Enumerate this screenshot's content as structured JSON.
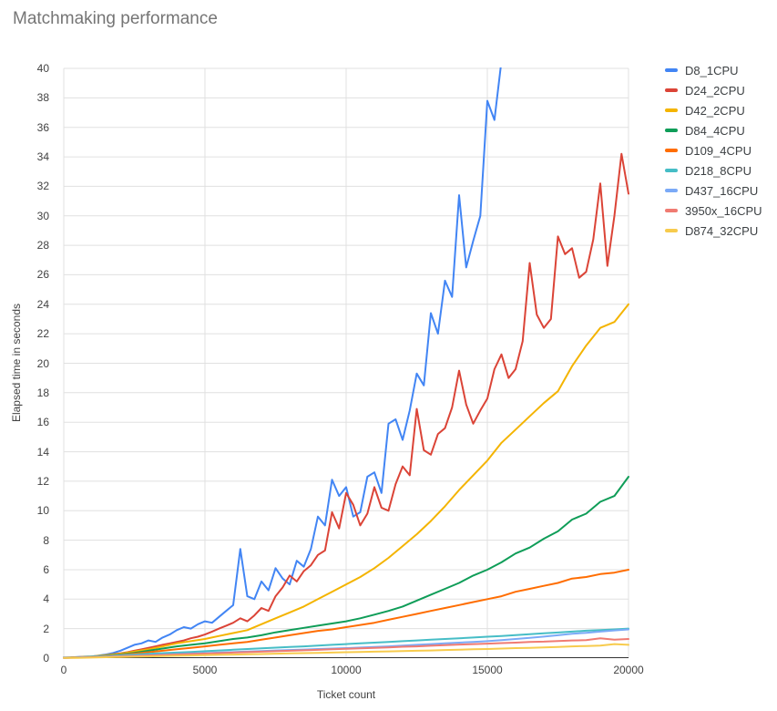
{
  "chart_data": {
    "type": "line",
    "title": "Matchmaking performance",
    "xlabel": "Ticket count",
    "ylabel": "Elapsed time in seconds",
    "xlim": [
      0,
      20000
    ],
    "ylim": [
      0,
      40
    ],
    "x_ticks": [
      0,
      5000,
      10000,
      15000,
      20000
    ],
    "y_tick_step": 2,
    "grid": true,
    "legend_position": "right",
    "background_color": "#ffffff",
    "gridline_color": "#e0e0e0",
    "baseline_color": "#333333",
    "title_color": "#757575",
    "series": [
      {
        "name": "D8_1CPU",
        "color": "#4285F4",
        "x_start": 0,
        "x_step": 250,
        "values": [
          0.05,
          0.05,
          0.08,
          0.1,
          0.12,
          0.18,
          0.25,
          0.35,
          0.5,
          0.7,
          0.9,
          1.0,
          1.2,
          1.1,
          1.4,
          1.6,
          1.9,
          2.1,
          2.0,
          2.3,
          2.5,
          2.4,
          2.8,
          3.2,
          3.6,
          7.4,
          4.2,
          4.0,
          5.2,
          4.6,
          6.1,
          5.4,
          5.0,
          6.6,
          6.2,
          7.4,
          9.6,
          9.0,
          12.1,
          11.0,
          11.6,
          9.6,
          9.9,
          12.3,
          12.6,
          11.2,
          15.9,
          16.2,
          14.8,
          16.8,
          19.3,
          18.5,
          23.4,
          22.0,
          25.6,
          24.5,
          31.4,
          26.5,
          28.3,
          30.0,
          37.8,
          36.5,
          40.5
        ]
      },
      {
        "name": "D24_2CPU",
        "color": "#DB4437",
        "x_start": 0,
        "x_step": 250,
        "values": [
          0.03,
          0.04,
          0.06,
          0.08,
          0.1,
          0.14,
          0.2,
          0.26,
          0.33,
          0.4,
          0.5,
          0.6,
          0.7,
          0.8,
          0.9,
          1.0,
          1.1,
          1.2,
          1.35,
          1.45,
          1.6,
          1.8,
          2.0,
          2.2,
          2.4,
          2.7,
          2.5,
          2.9,
          3.4,
          3.2,
          4.2,
          4.8,
          5.6,
          5.2,
          5.9,
          6.3,
          7.0,
          7.3,
          9.9,
          8.8,
          11.2,
          10.4,
          9.0,
          9.8,
          11.6,
          10.2,
          10.0,
          11.8,
          13.0,
          12.4,
          16.9,
          14.1,
          13.8,
          15.2,
          15.6,
          17.0,
          19.5,
          17.2,
          15.9,
          16.8,
          17.6,
          19.6,
          20.6,
          19.0,
          19.6,
          21.5,
          26.8,
          23.3,
          22.4,
          23.0,
          28.6,
          27.4,
          27.8,
          25.8,
          26.2,
          28.4,
          32.2,
          26.6,
          30.0,
          34.2,
          31.5
        ]
      },
      {
        "name": "D42_2CPU",
        "color": "#F4B400",
        "x_start": 0,
        "x_step": 500,
        "values": [
          0.03,
          0.06,
          0.12,
          0.2,
          0.3,
          0.45,
          0.6,
          0.8,
          1.0,
          1.15,
          1.3,
          1.5,
          1.7,
          1.9,
          2.3,
          2.7,
          3.1,
          3.5,
          4.0,
          4.5,
          5.0,
          5.5,
          6.1,
          6.8,
          7.6,
          8.4,
          9.3,
          10.3,
          11.4,
          12.4,
          13.4,
          14.6,
          15.5,
          16.4,
          17.3,
          18.1,
          19.8,
          21.2,
          22.4,
          22.8,
          24.0
        ]
      },
      {
        "name": "D84_4CPU",
        "color": "#0F9D58",
        "x_start": 0,
        "x_step": 500,
        "values": [
          0.03,
          0.05,
          0.1,
          0.16,
          0.25,
          0.35,
          0.5,
          0.65,
          0.8,
          0.9,
          1.0,
          1.15,
          1.3,
          1.4,
          1.55,
          1.75,
          1.9,
          2.05,
          2.2,
          2.35,
          2.5,
          2.7,
          2.95,
          3.2,
          3.5,
          3.9,
          4.3,
          4.7,
          5.1,
          5.6,
          6.0,
          6.5,
          7.1,
          7.5,
          8.1,
          8.6,
          9.4,
          9.8,
          10.6,
          11.0,
          12.3
        ]
      },
      {
        "name": "D109_4CPU",
        "color": "#FF6D01",
        "x_start": 0,
        "x_step": 500,
        "values": [
          0.02,
          0.05,
          0.1,
          0.15,
          0.22,
          0.3,
          0.4,
          0.5,
          0.6,
          0.7,
          0.8,
          0.9,
          1.0,
          1.1,
          1.25,
          1.4,
          1.55,
          1.7,
          1.85,
          1.95,
          2.1,
          2.25,
          2.4,
          2.6,
          2.8,
          3.0,
          3.2,
          3.4,
          3.6,
          3.8,
          4.0,
          4.2,
          4.5,
          4.7,
          4.9,
          5.1,
          5.4,
          5.5,
          5.7,
          5.8,
          6.0
        ]
      },
      {
        "name": "D218_8CPU",
        "color": "#46BDC6",
        "x_start": 0,
        "x_step": 500,
        "values": [
          0.02,
          0.05,
          0.1,
          0.14,
          0.19,
          0.24,
          0.29,
          0.34,
          0.38,
          0.42,
          0.47,
          0.52,
          0.57,
          0.62,
          0.66,
          0.71,
          0.76,
          0.8,
          0.85,
          0.9,
          0.95,
          1.0,
          1.05,
          1.1,
          1.15,
          1.2,
          1.25,
          1.3,
          1.35,
          1.4,
          1.45,
          1.5,
          1.56,
          1.62,
          1.68,
          1.74,
          1.8,
          1.86,
          1.9,
          1.95,
          2.0
        ]
      },
      {
        "name": "D437_16CPU",
        "color": "#7BAAF7",
        "x_start": 0,
        "x_step": 500,
        "values": [
          0.02,
          0.04,
          0.07,
          0.1,
          0.13,
          0.17,
          0.2,
          0.24,
          0.27,
          0.31,
          0.34,
          0.38,
          0.41,
          0.45,
          0.48,
          0.52,
          0.55,
          0.58,
          0.62,
          0.65,
          0.68,
          0.72,
          0.76,
          0.8,
          0.85,
          0.9,
          0.95,
          1.0,
          1.05,
          1.1,
          1.15,
          1.22,
          1.3,
          1.38,
          1.46,
          1.55,
          1.65,
          1.72,
          1.8,
          1.88,
          1.95
        ]
      },
      {
        "name": "3950x_16CPU",
        "color": "#F07B72",
        "x_start": 0,
        "x_step": 500,
        "values": [
          0.01,
          0.03,
          0.06,
          0.09,
          0.12,
          0.15,
          0.18,
          0.21,
          0.25,
          0.28,
          0.31,
          0.34,
          0.38,
          0.41,
          0.44,
          0.47,
          0.5,
          0.53,
          0.56,
          0.6,
          0.63,
          0.66,
          0.7,
          0.73,
          0.77,
          0.8,
          0.84,
          0.88,
          0.92,
          0.95,
          0.98,
          1.02,
          1.05,
          1.1,
          1.12,
          1.16,
          1.2,
          1.22,
          1.35,
          1.25,
          1.3
        ]
      },
      {
        "name": "D874_32CPU",
        "color": "#F7CB4D",
        "x_start": 0,
        "x_step": 500,
        "values": [
          0.01,
          0.02,
          0.04,
          0.06,
          0.08,
          0.1,
          0.12,
          0.14,
          0.16,
          0.18,
          0.2,
          0.22,
          0.24,
          0.26,
          0.28,
          0.3,
          0.32,
          0.34,
          0.36,
          0.38,
          0.4,
          0.42,
          0.44,
          0.46,
          0.48,
          0.5,
          0.52,
          0.55,
          0.57,
          0.6,
          0.62,
          0.65,
          0.68,
          0.7,
          0.73,
          0.76,
          0.8,
          0.82,
          0.85,
          0.95,
          0.9
        ]
      }
    ]
  }
}
